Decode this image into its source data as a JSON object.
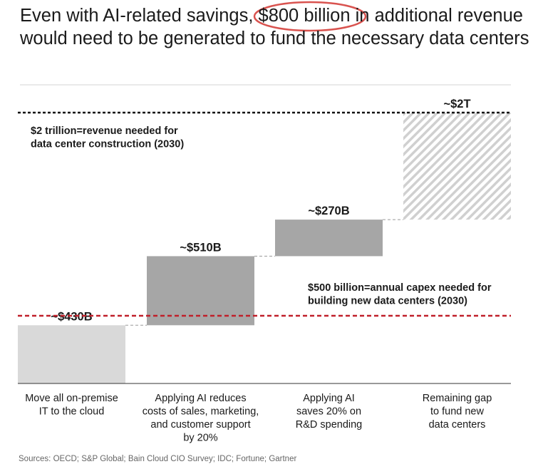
{
  "title_parts": {
    "before": "Even with AI-related savings, ",
    "highlight": "$800 billion",
    "after": " in additional revenue would need to be generated to fund the necessary data centers"
  },
  "sources": "Sources: OECD; S&P Global; Bain Cloud CIO Survey; IDC; Fortune; Gartner",
  "colors": {
    "light_bar": "#d9d9d9",
    "mid_bar": "#a6a6a6",
    "hatch": "#d0d0d0",
    "red_line": "#c0202a",
    "highlight_ellipse": "#d9534f",
    "black_line": "#111111"
  },
  "chart_data": {
    "type": "bar",
    "subtype": "waterfall",
    "unit": "billion USD",
    "ylim": [
      0,
      2000
    ],
    "bars": [
      {
        "category": "Move all on-premise IT to the cloud",
        "category_lines": [
          "Move all on-premise",
          "IT to the cloud"
        ],
        "label": "~$430B",
        "start": 0,
        "end": 430,
        "style": "light"
      },
      {
        "category": "Applying AI reduces costs of sales, marketing, and customer support by 20%",
        "category_lines": [
          "Applying AI reduces",
          "costs of sales, marketing,",
          "and customer support",
          "by 20%"
        ],
        "label": "~$510B",
        "start": 430,
        "end": 940,
        "style": "mid"
      },
      {
        "category": "Applying AI saves 20% on R&D spending",
        "category_lines": [
          "Applying AI",
          "saves 20% on",
          "R&D spending"
        ],
        "label": "~$270B",
        "start": 940,
        "end": 1210,
        "style": "mid"
      },
      {
        "category": "Remaining gap to fund new data centers",
        "category_lines": [
          "Remaining gap",
          "to fund new",
          "data centers"
        ],
        "label": "~$2T",
        "start": 1210,
        "end": 2000,
        "style": "hatched"
      }
    ],
    "reference_lines": [
      {
        "value": 2000,
        "style": "dashed-black",
        "text_lines": [
          "$2 trillion=revenue needed for",
          "data center construction (2030)"
        ]
      },
      {
        "value": 500,
        "style": "dashed-red",
        "text_lines": [
          "$500 billion=annual capex needed for",
          "building new data centers (2030)"
        ]
      }
    ],
    "grid": false,
    "legend": "none"
  }
}
